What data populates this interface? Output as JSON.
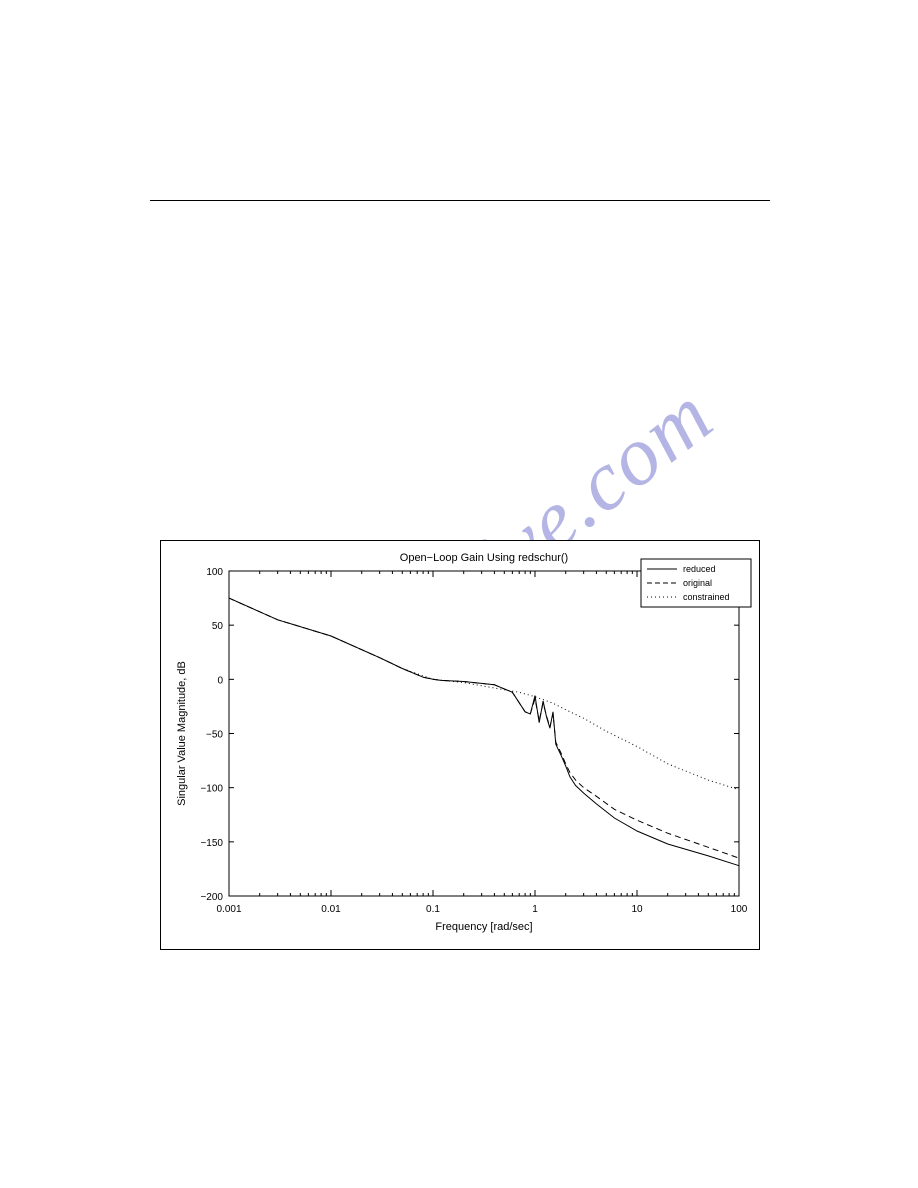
{
  "watermark": {
    "text": "manualshive.com"
  },
  "chart": {
    "type": "line",
    "title": "Open−Loop Gain Using redschur()",
    "title_fontsize": 11,
    "xlabel": "Frequency [rad/sec]",
    "ylabel": "Singular Value Magnitude, dB",
    "label_fontsize": 11,
    "tick_fontsize": 10,
    "background_color": "#ffffff",
    "axis_color": "#000000",
    "x_scale": "log",
    "y_scale": "linear",
    "xlim": [
      0.001,
      100
    ],
    "ylim": [
      -200,
      100
    ],
    "xticks": [
      0.001,
      0.01,
      0.1,
      1,
      10,
      100
    ],
    "xtick_labels": [
      "0.001",
      "0.01",
      "0.1",
      "1",
      "10",
      "100"
    ],
    "yticks": [
      -200,
      -150,
      -100,
      -50,
      0,
      50,
      100
    ],
    "ytick_labels": [
      "−200",
      "−150",
      "−100",
      "−50",
      "0",
      "50",
      "100"
    ],
    "legend": {
      "position": "upper-right",
      "fontsize": 9,
      "border_color": "#000000",
      "items": [
        {
          "label": "reduced",
          "style": "solid",
          "color": "#000000"
        },
        {
          "label": "original",
          "style": "dashed",
          "color": "#000000"
        },
        {
          "label": "constrained",
          "style": "dotted",
          "color": "#000000"
        }
      ]
    },
    "series": [
      {
        "name": "reduced",
        "color": "#000000",
        "style": "solid",
        "line_width": 1,
        "x": [
          0.001,
          0.003,
          0.01,
          0.03,
          0.05,
          0.08,
          0.1,
          0.12,
          0.2,
          0.4,
          0.6,
          0.8,
          0.9,
          1.0,
          1.1,
          1.2,
          1.3,
          1.4,
          1.5,
          1.6,
          1.8,
          2.0,
          2.2,
          2.5,
          3.0,
          4.0,
          6.0,
          10,
          20,
          50,
          100
        ],
        "y": [
          75,
          55,
          40,
          20,
          10,
          2,
          0,
          -1,
          -2,
          -5,
          -12,
          -30,
          -32,
          -15,
          -40,
          -20,
          -35,
          -45,
          -30,
          -60,
          -70,
          -80,
          -90,
          -98,
          -105,
          -115,
          -128,
          -140,
          -152,
          -163,
          -172
        ]
      },
      {
        "name": "original",
        "color": "#000000",
        "style": "dashed",
        "line_width": 1,
        "dash": "6,4",
        "x": [
          0.001,
          0.003,
          0.01,
          0.03,
          0.05,
          0.08,
          0.1,
          0.12,
          0.2,
          0.4,
          0.6,
          0.8,
          0.9,
          1.0,
          1.1,
          1.2,
          1.3,
          1.4,
          1.5,
          1.6,
          1.8,
          2.0,
          2.2,
          2.5,
          3.0,
          4.0,
          6.0,
          10,
          20,
          50,
          100
        ],
        "y": [
          75,
          55,
          40,
          20,
          10,
          2,
          0,
          -1,
          -2,
          -5,
          -12,
          -30,
          -32,
          -18,
          -38,
          -22,
          -34,
          -44,
          -32,
          -58,
          -68,
          -78,
          -86,
          -93,
          -100,
          -108,
          -120,
          -130,
          -142,
          -155,
          -165
        ]
      },
      {
        "name": "constrained",
        "color": "#000000",
        "style": "dotted",
        "line_width": 1,
        "dash": "1,3",
        "x": [
          0.001,
          0.003,
          0.01,
          0.03,
          0.05,
          0.1,
          0.2,
          0.4,
          0.7,
          1.0,
          1.5,
          2.0,
          3.0,
          5.0,
          10,
          20,
          50,
          100
        ],
        "y": [
          75,
          55,
          40,
          20,
          10,
          0,
          -3,
          -8,
          -12,
          -16,
          -22,
          -28,
          -36,
          -48,
          -62,
          -78,
          -93,
          -102
        ]
      }
    ]
  }
}
